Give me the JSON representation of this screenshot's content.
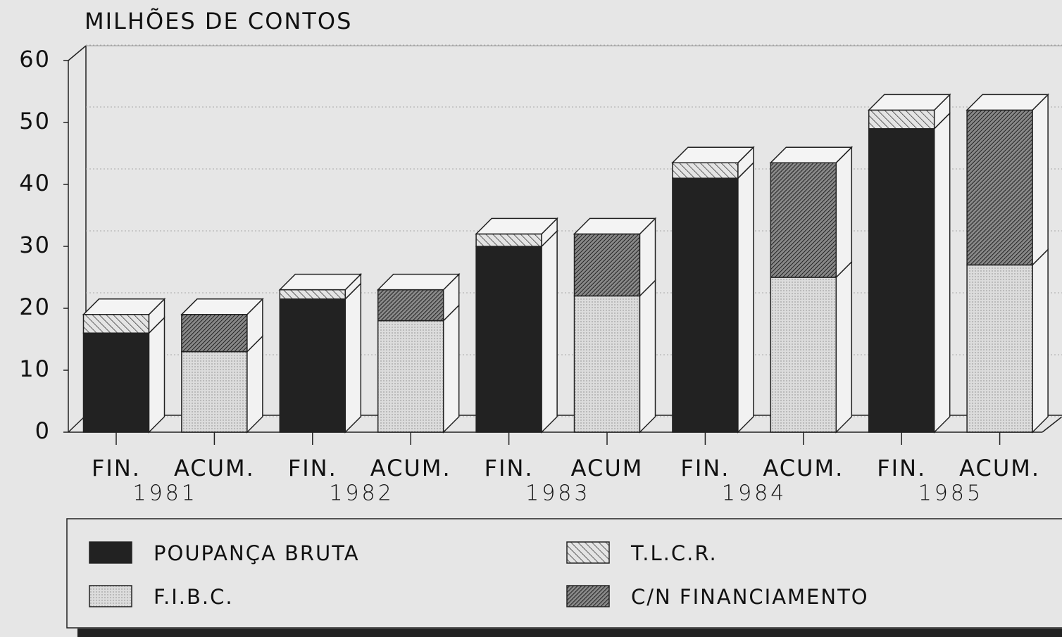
{
  "chart_data": {
    "type": "bar3d-stacked",
    "title": "MILHÕES DE CONTOS",
    "categories": [
      "FIN.",
      "ACUM.",
      "FIN.",
      "ACUM.",
      "FIN.",
      "ACUM",
      "FIN.",
      "ACUM.",
      "FIN.",
      "ACUM."
    ],
    "groups": [
      "1981",
      "1982",
      "1983",
      "1984",
      "1985"
    ],
    "series": [
      {
        "name": "POUPANÇA BRUTA",
        "color": "#222222",
        "pattern": "solid",
        "values": [
          16,
          null,
          21.5,
          null,
          30,
          null,
          41,
          null,
          49,
          null
        ]
      },
      {
        "name": "F.I.B.C.",
        "color": "#d8d8d8",
        "pattern": "dots",
        "values": [
          null,
          13,
          null,
          18,
          null,
          22,
          null,
          25,
          null,
          27
        ]
      },
      {
        "name": "T.L.C.R.",
        "color": "#e0e0e0",
        "pattern": "hatch",
        "values": [
          3,
          null,
          1.5,
          null,
          2,
          null,
          2.5,
          null,
          3,
          null
        ]
      },
      {
        "name": "C/N FINANCIAMENTO",
        "color": "#555555",
        "pattern": "dense-hatch",
        "values": [
          null,
          6,
          null,
          5,
          null,
          10,
          null,
          18.5,
          null,
          25
        ]
      }
    ],
    "ylim": [
      0,
      60
    ],
    "yticks": [
      0,
      10,
      20,
      30,
      40,
      50,
      60
    ],
    "grid": true
  }
}
